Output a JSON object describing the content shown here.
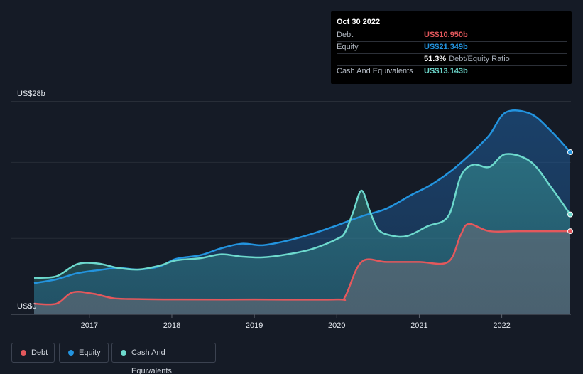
{
  "tooltip": {
    "date": "Oct 30 2022",
    "rows": [
      {
        "label": "Debt",
        "value": "US$10.950b",
        "color": "#e4585c"
      },
      {
        "label": "Equity",
        "value": "US$21.349b",
        "color": "#2394df"
      },
      {
        "label": "",
        "value": "51.3%",
        "sub": "Debt/Equity Ratio",
        "color": "#ffffff"
      },
      {
        "label": "Cash And Equivalents",
        "value": "US$13.143b",
        "color": "#6dd9cd"
      }
    ]
  },
  "colors": {
    "background": "#151b26",
    "debt": "#e4585c",
    "equity": "#2394df",
    "cash": "#6dd9cd"
  },
  "legend": [
    {
      "name": "Debt",
      "color": "#e4585c"
    },
    {
      "name": "Equity",
      "color": "#2394df"
    },
    {
      "name": "Cash And Equivalents",
      "color": "#6dd9cd"
    }
  ],
  "chart_data": {
    "type": "area",
    "title": "",
    "xlabel": "",
    "ylabel": "",
    "y_top_label": "US$28b",
    "y_bottom_label": "US$0",
    "ylim": [
      0,
      28
    ],
    "xlim": [
      2016.33,
      2022.83
    ],
    "x_ticks": [
      "2017",
      "2018",
      "2019",
      "2020",
      "2021",
      "2022"
    ],
    "grid": true,
    "legend_position": "bottom-left",
    "series": [
      {
        "name": "Equity",
        "color": "#2394df",
        "points": [
          [
            2016.33,
            4.1
          ],
          [
            2016.6,
            4.6
          ],
          [
            2016.85,
            5.4
          ],
          [
            2017.1,
            5.8
          ],
          [
            2017.35,
            6.1
          ],
          [
            2017.6,
            5.9
          ],
          [
            2017.85,
            6.3
          ],
          [
            2018.05,
            7.3
          ],
          [
            2018.35,
            7.8
          ],
          [
            2018.6,
            8.7
          ],
          [
            2018.85,
            9.3
          ],
          [
            2019.1,
            9.1
          ],
          [
            2019.4,
            9.7
          ],
          [
            2019.7,
            10.6
          ],
          [
            2020.0,
            11.7
          ],
          [
            2020.3,
            12.9
          ],
          [
            2020.6,
            13.9
          ],
          [
            2020.9,
            15.7
          ],
          [
            2021.15,
            17.1
          ],
          [
            2021.4,
            19.0
          ],
          [
            2021.65,
            21.4
          ],
          [
            2021.85,
            23.6
          ],
          [
            2022.05,
            26.6
          ],
          [
            2022.35,
            26.4
          ],
          [
            2022.6,
            24.1
          ],
          [
            2022.83,
            21.349
          ]
        ]
      },
      {
        "name": "Cash And Equivalents",
        "color": "#6dd9cd",
        "points": [
          [
            2016.33,
            4.8
          ],
          [
            2016.6,
            5.0
          ],
          [
            2016.85,
            6.6
          ],
          [
            2017.1,
            6.7
          ],
          [
            2017.35,
            6.1
          ],
          [
            2017.6,
            5.9
          ],
          [
            2017.85,
            6.4
          ],
          [
            2018.05,
            7.1
          ],
          [
            2018.35,
            7.4
          ],
          [
            2018.6,
            7.9
          ],
          [
            2018.85,
            7.6
          ],
          [
            2019.1,
            7.5
          ],
          [
            2019.4,
            7.9
          ],
          [
            2019.7,
            8.6
          ],
          [
            2020.0,
            9.9
          ],
          [
            2020.1,
            10.8
          ],
          [
            2020.2,
            13.5
          ],
          [
            2020.3,
            16.3
          ],
          [
            2020.4,
            13.6
          ],
          [
            2020.5,
            11.2
          ],
          [
            2020.65,
            10.4
          ],
          [
            2020.85,
            10.3
          ],
          [
            2021.1,
            11.6
          ],
          [
            2021.35,
            12.9
          ],
          [
            2021.5,
            18.1
          ],
          [
            2021.65,
            19.7
          ],
          [
            2021.85,
            19.4
          ],
          [
            2022.05,
            21.1
          ],
          [
            2022.35,
            20.1
          ],
          [
            2022.6,
            16.7
          ],
          [
            2022.83,
            13.143
          ]
        ]
      },
      {
        "name": "Debt",
        "color": "#e4585c",
        "points": [
          [
            2016.33,
            1.4
          ],
          [
            2016.6,
            1.4
          ],
          [
            2016.8,
            2.9
          ],
          [
            2017.05,
            2.7
          ],
          [
            2017.3,
            2.1
          ],
          [
            2017.6,
            2.0
          ],
          [
            2018.0,
            1.95
          ],
          [
            2019.0,
            1.95
          ],
          [
            2020.0,
            1.95
          ],
          [
            2020.1,
            2.3
          ],
          [
            2020.3,
            6.9
          ],
          [
            2020.6,
            6.9
          ],
          [
            2021.0,
            6.9
          ],
          [
            2021.35,
            6.9
          ],
          [
            2021.5,
            10.4
          ],
          [
            2021.6,
            11.9
          ],
          [
            2021.85,
            10.95
          ],
          [
            2022.2,
            10.95
          ],
          [
            2022.83,
            10.95
          ]
        ]
      }
    ]
  }
}
